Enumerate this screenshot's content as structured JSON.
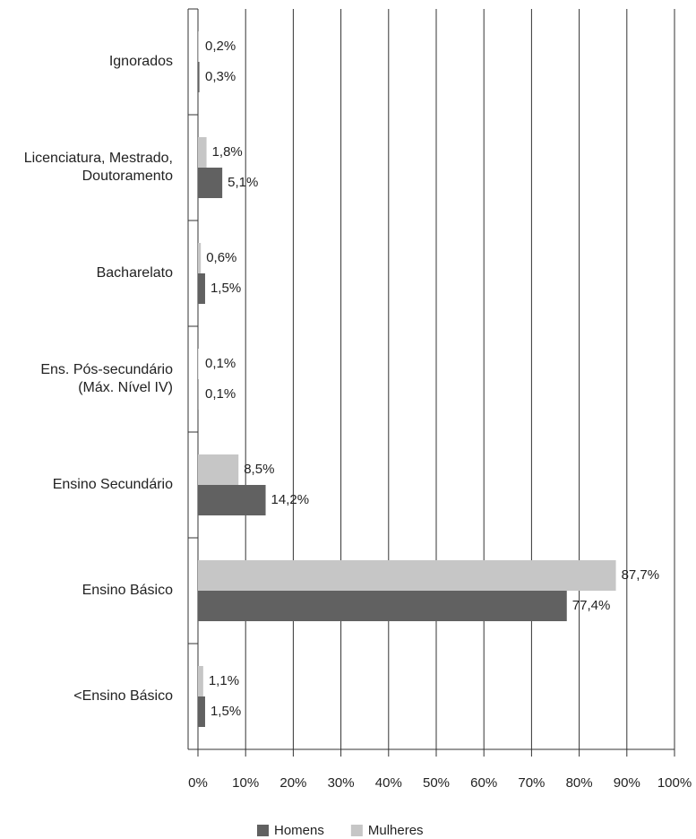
{
  "chart_data": {
    "type": "hbar",
    "categories": [
      "Ignorados",
      "Licenciatura, Mestrado,\nDoutoramento",
      "Bacharelato",
      "Ens. Pós-secundário\n(Máx. Nível IV)",
      "Ensino Secundário",
      "Ensino Básico",
      "<Ensino Básico"
    ],
    "series": [
      {
        "name": "Homens",
        "color": "#616161",
        "values": [
          0.3,
          5.1,
          1.5,
          0.1,
          14.2,
          77.4,
          1.5
        ],
        "value_labels": [
          "0,3%",
          "5,1%",
          "1,5%",
          "0,1%",
          "14,2%",
          "77,4%",
          "1,5%"
        ]
      },
      {
        "name": "Mulheres",
        "color": "#c6c6c6",
        "values": [
          0.2,
          1.8,
          0.6,
          0.1,
          8.5,
          87.7,
          1.1
        ],
        "value_labels": [
          "0,2%",
          "1,8%",
          "0,6%",
          "0,1%",
          "8,5%",
          "87,7%",
          "1,1%"
        ]
      }
    ],
    "xlim": [
      0,
      100
    ],
    "xticks": [
      {
        "value": 0,
        "label": "0%"
      },
      {
        "value": 10,
        "label": "10%"
      },
      {
        "value": 20,
        "label": "20%"
      },
      {
        "value": 30,
        "label": "30%"
      },
      {
        "value": 40,
        "label": "40%"
      },
      {
        "value": 50,
        "label": "50%"
      },
      {
        "value": 60,
        "label": "60%"
      },
      {
        "value": 70,
        "label": "70%"
      },
      {
        "value": 80,
        "label": "80%"
      },
      {
        "value": 90,
        "label": "90%"
      },
      {
        "value": 100,
        "label": "100%"
      }
    ],
    "grid": true,
    "legend": "bottom"
  }
}
